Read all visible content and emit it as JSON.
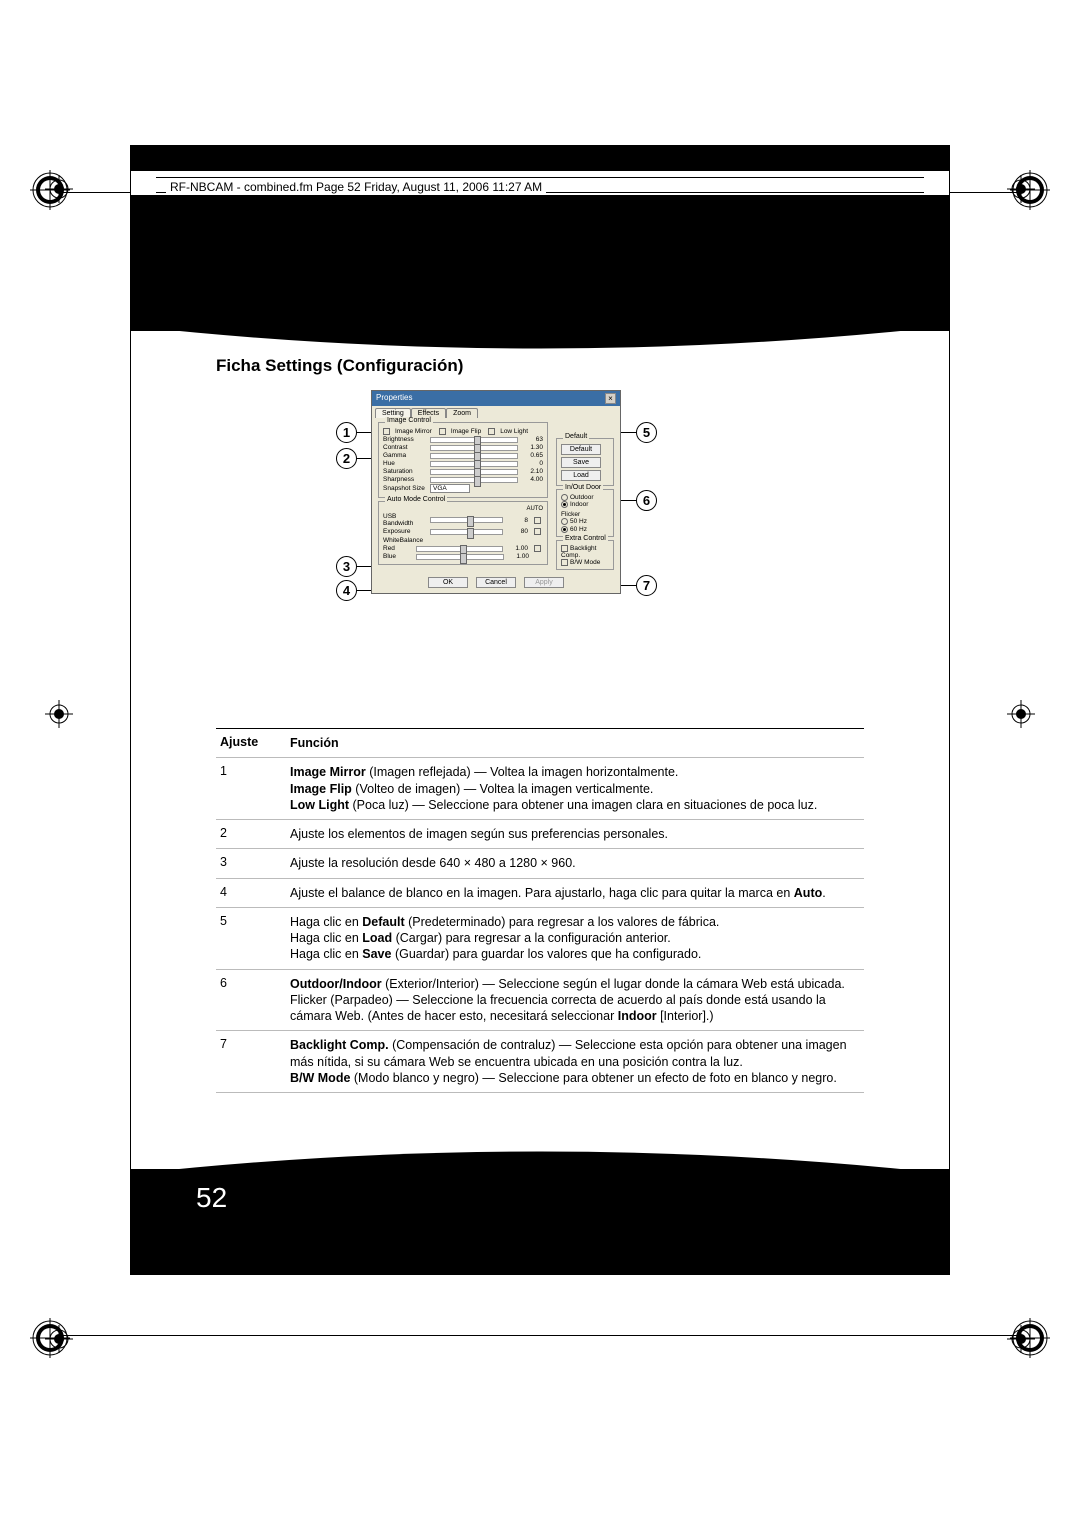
{
  "header": {
    "doc_line": "RF-NBCAM - combined.fm  Page 52  Friday, August 11, 2006  11:27 AM"
  },
  "page_number": "52",
  "section_title": "Ficha Settings (Configuración)",
  "callouts": [
    "1",
    "2",
    "3",
    "4",
    "5",
    "6",
    "7"
  ],
  "dialog": {
    "title": "Properties",
    "tabs": [
      "Setting",
      "Effects",
      "Zoom"
    ],
    "image_control": {
      "label": "Image Control",
      "checks": [
        {
          "label": "Image Mirror"
        },
        {
          "label": "Image Flip"
        },
        {
          "label": "Low Light"
        }
      ],
      "sliders": [
        {
          "label": "Brightness",
          "value": "63"
        },
        {
          "label": "Contrast",
          "value": "1.30"
        },
        {
          "label": "Gamma",
          "value": "0.65"
        },
        {
          "label": "Hue",
          "value": "0"
        },
        {
          "label": "Saturation",
          "value": "2.10"
        },
        {
          "label": "Sharpness",
          "value": "4.00"
        }
      ],
      "snapshot_label": "Snapshot Size",
      "snapshot_value": "VGA"
    },
    "auto_mode": {
      "label": "Auto Mode Control",
      "auto": "AUTO",
      "rows": [
        {
          "label": "USB Bandwidth",
          "value": "8"
        },
        {
          "label": "Exposure",
          "value": "80"
        }
      ],
      "wb_label": "WhiteBalance",
      "wb_rows": [
        {
          "label": "Red",
          "value": "1.00"
        },
        {
          "label": "Blue",
          "value": "1.00"
        }
      ]
    },
    "default_group": {
      "label": "Default",
      "buttons": [
        "Default",
        "Save",
        "Load"
      ]
    },
    "inout": {
      "label": "In/Out Door",
      "opts": [
        "Outdoor",
        "Indoor"
      ],
      "flicker_label": "Flicker",
      "flicker_opts": [
        "50 Hz",
        "60 Hz"
      ]
    },
    "extra": {
      "label": "Extra Control",
      "items": [
        "Backlight Comp.",
        "B/W Mode"
      ]
    },
    "footer": {
      "ok": "OK",
      "cancel": "Cancel",
      "apply": "Apply"
    }
  },
  "table": {
    "hdr_a": "Ajuste",
    "hdr_b": "Función",
    "rows": [
      {
        "n": "1",
        "html": "<b>Image Mirror</b> (Imagen reflejada) — Voltea la imagen horizontalmente.<br><b>Image Flip</b> (Volteo de imagen) — Voltea la imagen verticalmente.<br><b>Low Light</b> (Poca luz) — Seleccione para obtener una imagen clara en situaciones de poca luz."
      },
      {
        "n": "2",
        "html": "Ajuste los elementos de imagen según sus preferencias personales."
      },
      {
        "n": "3",
        "html": "Ajuste la resolución desde 640 × 480 a 1280 × 960."
      },
      {
        "n": "4",
        "html": "Ajuste el balance de blanco en la imagen. Para ajustarlo, haga clic para quitar la marca en <b>Auto</b>."
      },
      {
        "n": "5",
        "html": "Haga clic en <b>Default</b> (Predeterminado) para regresar a los valores de fábrica.<br>Haga clic en <b>Load</b> (Cargar) para regresar a la configuración anterior.<br>Haga clic en <b>Save</b> (Guardar) para guardar los valores que ha configurado."
      },
      {
        "n": "6",
        "html": "<b>Outdoor/Indoor</b> (Exterior/Interior) — Seleccione según el lugar donde la cámara Web está ubicada.<br>Flicker (Parpadeo) — Seleccione la frecuencia correcta de acuerdo al país donde está usando la cámara Web. (Antes de hacer esto, necesitará seleccionar <b>Indoor</b> [Interior].)"
      },
      {
        "n": "7",
        "html": "<b>Backlight Comp.</b> (Compensación de contraluz) — Seleccione esta opción para obtener una imagen más nítida, si su cámara Web se encuentra ubicada en una posición contra la luz.<br><b>B/W Mode</b> (Modo blanco y negro) — Seleccione para obtener un efecto de foto en blanco y negro."
      }
    ]
  },
  "colors": {
    "page_bg": "#ffffff",
    "black": "#000000",
    "dialog_bg": "#ece9d8",
    "titlebar": "#3a6ea5"
  }
}
